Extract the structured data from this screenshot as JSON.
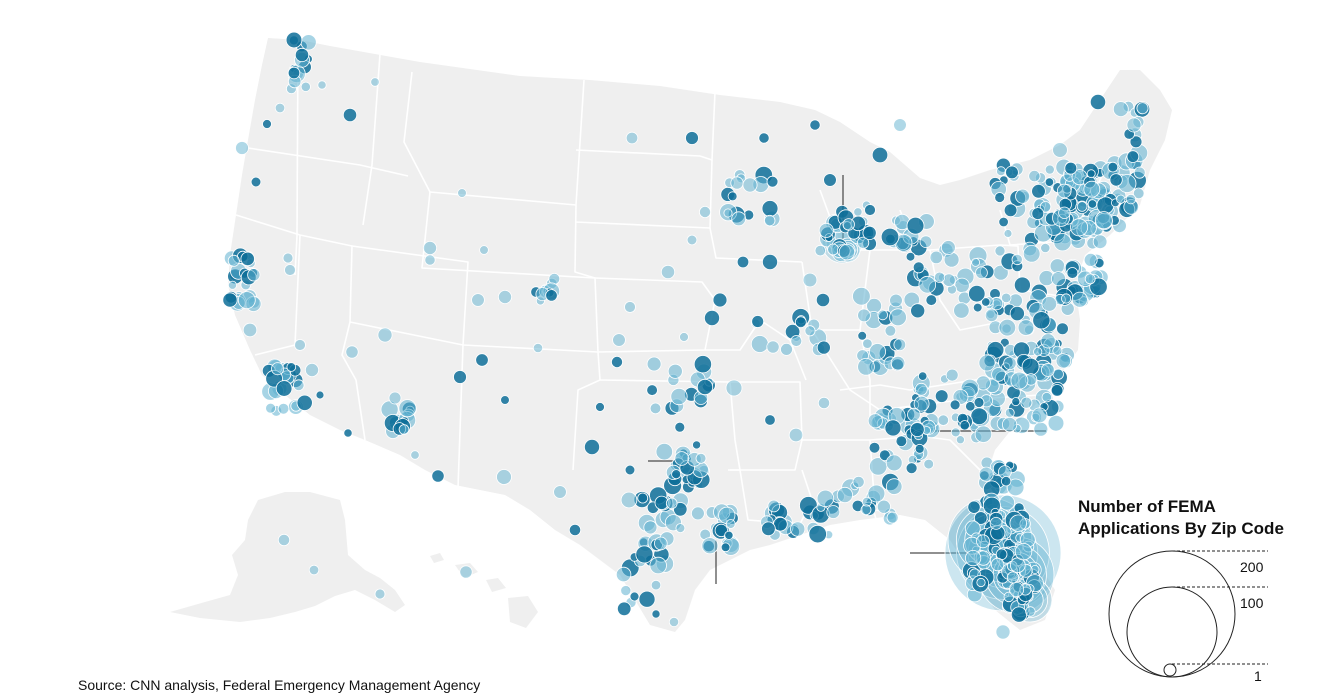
{
  "legend": {
    "title_line1": "Number of FEMA",
    "title_line2": "Applications By Zip Code",
    "label_large": "200",
    "label_medium": "100",
    "label_small": "1",
    "value_large": 200,
    "value_medium": 100,
    "value_small": 1
  },
  "source": "Source: CNN analysis, Federal Emergency Management Agency",
  "colors": {
    "land": "#efefef",
    "borders": "#ffffff",
    "bubble_fill": "#5fb1d0",
    "bubble_dark": "#0e6f99",
    "bubble_stroke": "#ffffff"
  }
}
